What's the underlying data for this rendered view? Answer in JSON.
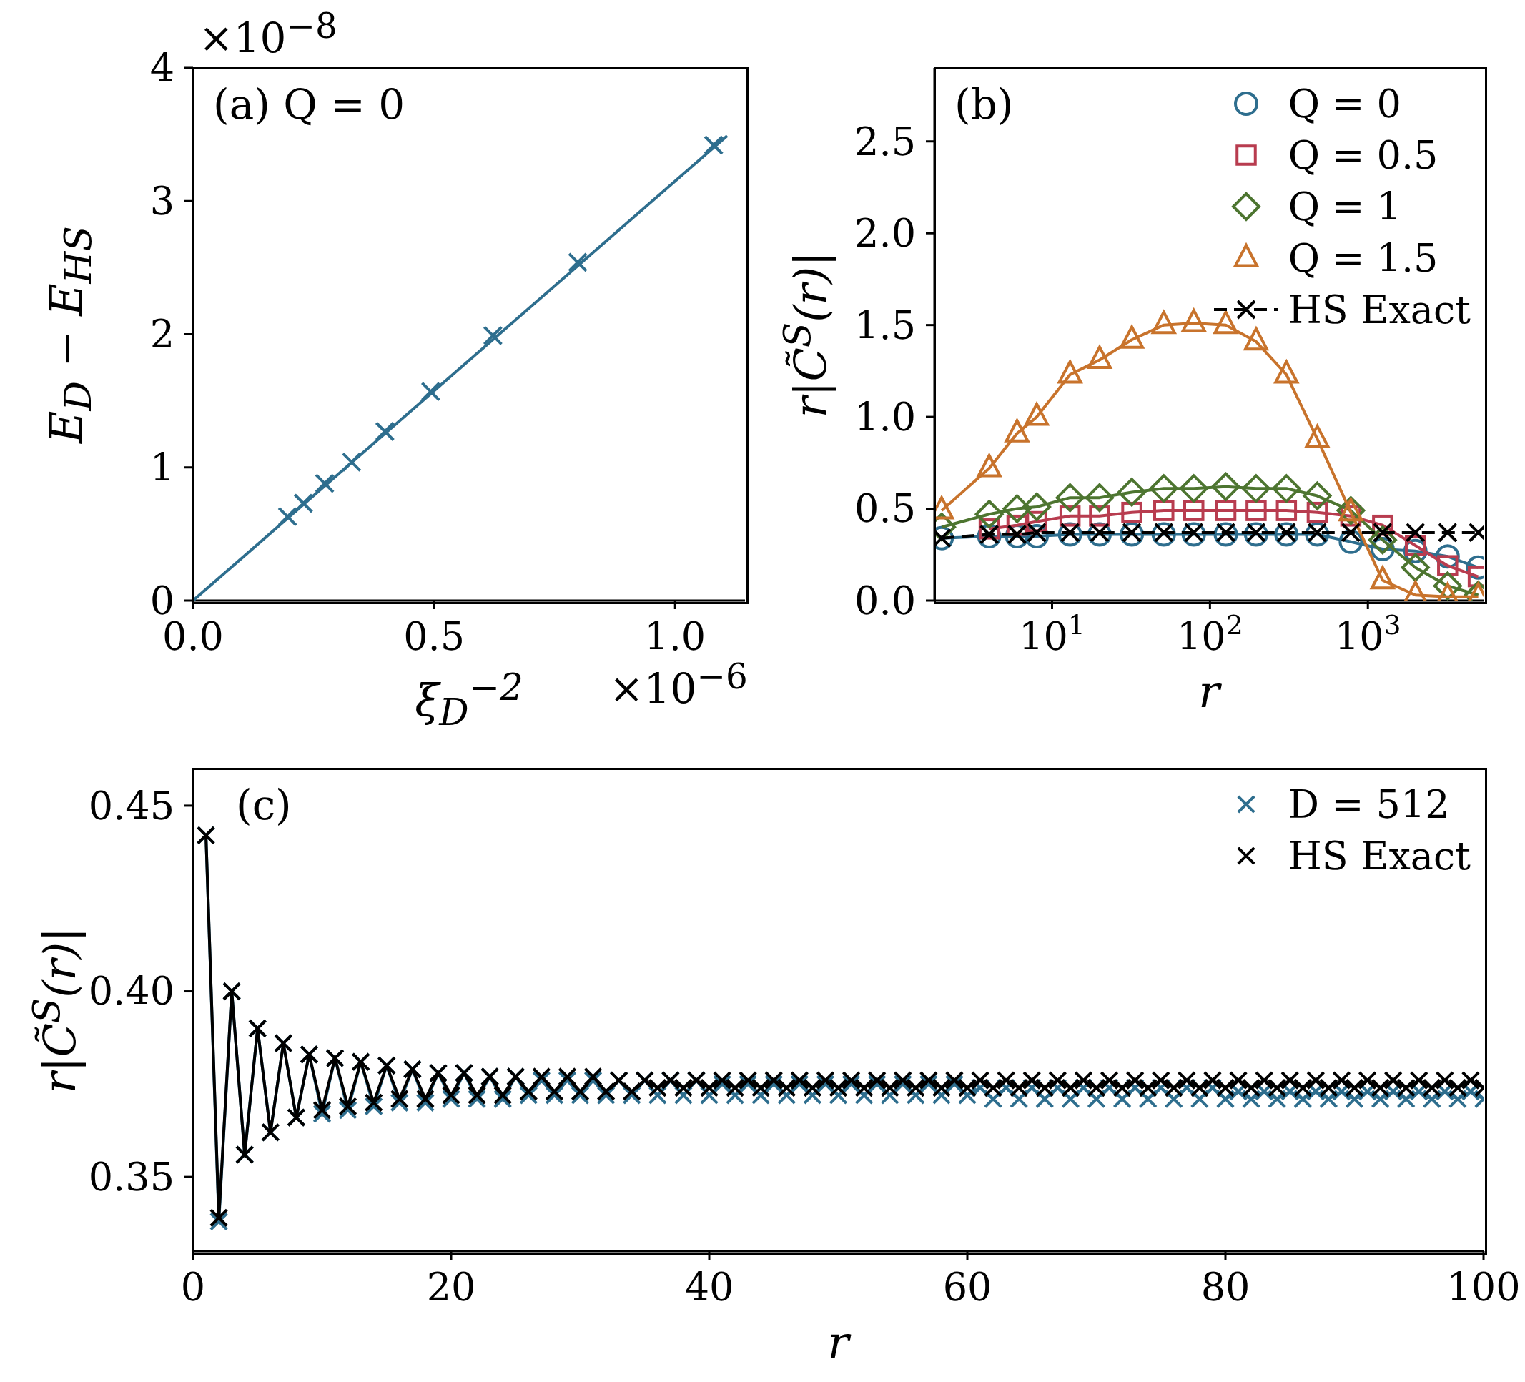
{
  "chart_data": [
    {
      "type": "scatter",
      "xlabel": "ξ$_{D}$$^{−2}$",
      "ylabel": "E$_{D}$ − E$_{HS}$",
      "annotations": [
        "(a) Q = 0",
        "×10$^{−8}$",
        "×10$^{−6}$"
      ],
      "xlim": [
        0,
        1.145
      ],
      "xticks": [
        {
          "value": 0,
          "label": "0.0"
        },
        {
          "value": 0.5,
          "label": "0.5"
        },
        {
          "value": 1,
          "label": "1.0"
        }
      ],
      "ylim": [
        0,
        4
      ],
      "yticks": [
        0,
        1,
        2,
        3,
        4
      ],
      "series": [
        {
          "color": "#2e6e8e",
          "marker": "cross",
          "x": [
            0.196,
            0.229,
            0.273,
            0.329,
            0.398,
            0.493,
            0.622,
            0.798,
            1.08
          ],
          "values": [
            0.63,
            0.73,
            0.88,
            1.04,
            1.27,
            1.57,
            1.99,
            2.54,
            3.42
          ]
        },
        {
          "type": "line",
          "color": "#2e6e8e",
          "x": [
            0,
            1.108
          ],
          "values": [
            0,
            3.49
          ]
        }
      ]
    },
    {
      "type": "line",
      "xlabel": "r",
      "ylabel": "r|C̃$^{S}$(r)|",
      "annotations": [
        "(b)"
      ],
      "log": "x",
      "legend": "top right",
      "x": [
        2,
        4,
        6,
        8,
        13,
        20,
        32,
        51,
        79,
        126,
        196,
        305,
        478,
        780,
        1240,
        2000,
        3200,
        5000
      ],
      "xlim": [
        1.8,
        5400
      ],
      "xticks": [
        {
          "value": 10,
          "label": "10$^{1}$"
        },
        {
          "value": 100,
          "label": "10$^{2}$"
        },
        {
          "value": 1000,
          "label": "10$^{3}$"
        }
      ],
      "ylim": [
        0,
        2.9
      ],
      "yticks": [
        {
          "value": 0,
          "label": "0.0"
        },
        {
          "value": 0.5,
          "label": "0.5"
        },
        {
          "value": 1,
          "label": "1.0"
        },
        {
          "value": 1.5,
          "label": "1.5"
        },
        {
          "value": 2,
          "label": "2.0"
        },
        {
          "value": 2.5,
          "label": "2.5"
        }
      ],
      "series": [
        {
          "name": "Q = 0",
          "color": "#2e6e8e",
          "marker": "circle",
          "line_style": "solid",
          "values": [
            0.34,
            0.35,
            0.35,
            0.35,
            0.36,
            0.36,
            0.36,
            0.36,
            0.36,
            0.36,
            0.36,
            0.36,
            0.36,
            0.32,
            0.28,
            0.27,
            0.24,
            0.18
          ]
        },
        {
          "name": "Q = 0.5",
          "color": "#b83c4f",
          "marker": "square",
          "line_style": "solid",
          "values": [
            null,
            0.39,
            0.41,
            0.43,
            0.46,
            0.46,
            0.48,
            0.49,
            0.49,
            0.49,
            0.49,
            0.49,
            0.48,
            0.46,
            0.41,
            0.3,
            0.19,
            0.13
          ]
        },
        {
          "name": "Q = 1",
          "color": "#4d7530",
          "marker": "diamond",
          "line_style": "solid",
          "values": [
            0.4,
            0.47,
            0.5,
            0.51,
            0.56,
            0.56,
            0.59,
            0.61,
            0.61,
            0.62,
            0.61,
            0.61,
            0.57,
            0.49,
            0.33,
            0.18,
            0.08,
            0.03
          ]
        },
        {
          "name": "Q = 1.5",
          "color": "#c8732c",
          "marker": "triangle",
          "line_style": "solid",
          "values": [
            0.49,
            0.72,
            0.91,
            1.0,
            1.23,
            1.31,
            1.42,
            1.5,
            1.51,
            1.5,
            1.41,
            1.23,
            0.88,
            0.48,
            0.11,
            0.03,
            0.02,
            0.02
          ]
        },
        {
          "name": "HS Exact",
          "color": "#000000",
          "marker": "cross",
          "line_style": "dashed",
          "values": [
            0.34,
            0.36,
            0.36,
            0.37,
            0.37,
            0.37,
            0.37,
            0.37,
            0.37,
            0.37,
            0.37,
            0.37,
            0.37,
            0.37,
            0.37,
            0.37,
            0.37,
            0.37
          ]
        }
      ]
    },
    {
      "type": "line",
      "xlabel": "r",
      "ylabel": "r|C̃$^{S}$(r)|",
      "annotations": [
        "(c)"
      ],
      "legend": "top right",
      "x": [
        1,
        2,
        3,
        4,
        5,
        6,
        7,
        8,
        9,
        10,
        11,
        12,
        13,
        14,
        15,
        16,
        17,
        18,
        19,
        20,
        21,
        22,
        23,
        24,
        25,
        26,
        27,
        28,
        29,
        30,
        31,
        32,
        33,
        34,
        35,
        36,
        37,
        38,
        39,
        40,
        41,
        42,
        43,
        44,
        45,
        46,
        47,
        48,
        49,
        50,
        51,
        52,
        53,
        54,
        55,
        56,
        57,
        58,
        59,
        60,
        61,
        62,
        63,
        64,
        65,
        66,
        67,
        68,
        69,
        70,
        71,
        72,
        73,
        74,
        75,
        76,
        77,
        78,
        79,
        80,
        81,
        82,
        83,
        84,
        85,
        86,
        87,
        88,
        89,
        90,
        91,
        92,
        93,
        94,
        95,
        96,
        97,
        98,
        99,
        100
      ],
      "xlim": [
        0,
        100
      ],
      "xticks": [
        0,
        20,
        40,
        60,
        80,
        100
      ],
      "ylim": [
        0.33,
        0.46
      ],
      "yticks": [
        0.35,
        {
          "value": 0.4,
          "label": "0.40"
        },
        0.45
      ],
      "series": [
        {
          "name": "D = 512",
          "color": "#2e6e8e",
          "marker": "cross",
          "line_style": "solid",
          "values": [
            0.442,
            0.338,
            0.4,
            0.356,
            0.39,
            0.362,
            0.386,
            0.366,
            0.383,
            0.367,
            0.382,
            0.368,
            0.381,
            0.369,
            0.38,
            0.37,
            0.379,
            0.37,
            0.378,
            0.371,
            0.378,
            0.371,
            0.377,
            0.371,
            0.377,
            0.372,
            0.376,
            0.372,
            0.376,
            0.372,
            0.376,
            0.372,
            0.376,
            0.372,
            0.376,
            0.372,
            0.376,
            0.372,
            0.376,
            0.372,
            0.375,
            0.372,
            0.375,
            0.372,
            0.375,
            0.372,
            0.375,
            0.372,
            0.375,
            0.372,
            0.375,
            0.372,
            0.375,
            0.372,
            0.375,
            0.372,
            0.375,
            0.372,
            0.375,
            0.372,
            0.374,
            0.371,
            0.374,
            0.371,
            0.374,
            0.371,
            0.374,
            0.371,
            0.374,
            0.371,
            0.374,
            0.371,
            0.374,
            0.371,
            0.374,
            0.371,
            0.374,
            0.371,
            0.374,
            0.371,
            0.373,
            0.371,
            0.373,
            0.371,
            0.373,
            0.371,
            0.373,
            0.371,
            0.373,
            0.371,
            0.373,
            0.371,
            0.373,
            0.371,
            0.373,
            0.371,
            0.373,
            0.371,
            0.373,
            0.371
          ]
        },
        {
          "name": "HS Exact",
          "color": "#000000",
          "marker": "cross",
          "line_style": "solid",
          "values": [
            0.442,
            0.339,
            0.4,
            0.356,
            0.39,
            0.362,
            0.386,
            0.366,
            0.383,
            0.368,
            0.382,
            0.369,
            0.381,
            0.37,
            0.38,
            0.371,
            0.379,
            0.371,
            0.378,
            0.372,
            0.378,
            0.372,
            0.377,
            0.372,
            0.377,
            0.373,
            0.377,
            0.373,
            0.377,
            0.373,
            0.377,
            0.373,
            0.376,
            0.373,
            0.376,
            0.374,
            0.376,
            0.374,
            0.376,
            0.374,
            0.376,
            0.374,
            0.376,
            0.374,
            0.376,
            0.374,
            0.376,
            0.374,
            0.376,
            0.374,
            0.376,
            0.374,
            0.376,
            0.374,
            0.376,
            0.374,
            0.376,
            0.374,
            0.376,
            0.374,
            0.376,
            0.374,
            0.376,
            0.374,
            0.376,
            0.374,
            0.376,
            0.374,
            0.376,
            0.374,
            0.376,
            0.374,
            0.376,
            0.374,
            0.376,
            0.374,
            0.376,
            0.374,
            0.376,
            0.374,
            0.376,
            0.374,
            0.376,
            0.374,
            0.376,
            0.374,
            0.376,
            0.374,
            0.376,
            0.374,
            0.376,
            0.374,
            0.376,
            0.374,
            0.376,
            0.374,
            0.376,
            0.374,
            0.376,
            0.374
          ]
        }
      ]
    }
  ]
}
